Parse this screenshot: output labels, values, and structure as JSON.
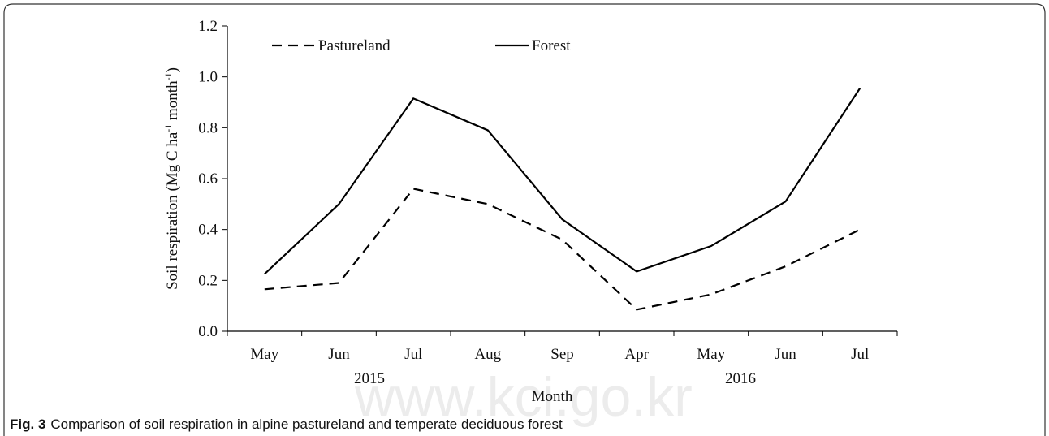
{
  "chart_data": {
    "type": "line",
    "categories": [
      "May",
      "Jun",
      "Jul",
      "Aug",
      "Sep",
      "Apr",
      "May",
      "Jun",
      "Jul"
    ],
    "year_labels": [
      "2015",
      "2016"
    ],
    "xlabel": "Month",
    "ylabel": [
      "Soil respiration (Mg C ha",
      "-1",
      " month",
      "-1",
      ")"
    ],
    "ylim": [
      0,
      1.2
    ],
    "yticks": [
      {
        "value": 0,
        "label": "0.0"
      },
      0.2,
      0.4,
      0.6,
      0.8,
      {
        "value": 1,
        "label": "1.0"
      },
      1.2
    ],
    "legend": "top-left",
    "series": [
      {
        "name": "Pastureland",
        "color": "#000000",
        "dash": true,
        "values": [
          0.165,
          0.19,
          0.56,
          0.5,
          0.36,
          0.085,
          0.145,
          0.255,
          0.4
        ]
      },
      {
        "name": "Forest",
        "color": "#000000",
        "dash": false,
        "values": [
          0.225,
          0.5,
          0.915,
          0.79,
          0.44,
          0.235,
          0.335,
          0.51,
          0.955
        ]
      }
    ]
  },
  "caption": {
    "label": "Fig. 3",
    "text": "Comparison of soil respiration in alpine pastureland and temperate deciduous forest"
  },
  "watermark": "www.kci.go.kr"
}
